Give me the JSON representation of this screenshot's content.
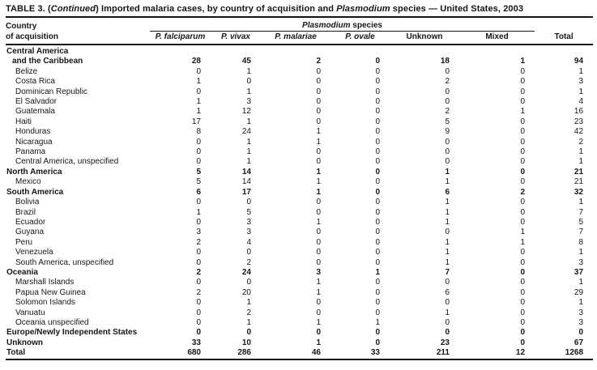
{
  "title": {
    "segments": [
      {
        "text": "TABLE 3. (",
        "italic": false
      },
      {
        "text": "Continued",
        "italic": true
      },
      {
        "text": ") Imported malaria cases, by country of acquisition and ",
        "italic": false
      },
      {
        "text": "Plasmodium",
        "italic": true
      },
      {
        "text": " species — United States, 2003",
        "italic": false
      }
    ]
  },
  "header": {
    "country_line1": "Country",
    "country_line2": "of acquisition",
    "species_group_italic": "Plasmodium",
    "species_group_rest": " species",
    "columns": [
      "P. falciparum",
      "P. vivax",
      "P. malariae",
      "P. ovale",
      "Unknown",
      "Mixed",
      "Total"
    ]
  },
  "rows": [
    {
      "label": "Central America",
      "indent": 0,
      "bold": true,
      "values": null
    },
    {
      "label": "and the Caribbean",
      "indent": 1,
      "bold": true,
      "values": [
        28,
        45,
        2,
        0,
        18,
        1,
        94
      ]
    },
    {
      "label": "Belize",
      "indent": 2,
      "bold": false,
      "values": [
        0,
        1,
        0,
        0,
        0,
        0,
        1
      ]
    },
    {
      "label": "Costa Rica",
      "indent": 2,
      "bold": false,
      "values": [
        1,
        0,
        0,
        0,
        2,
        0,
        3
      ]
    },
    {
      "label": "Dominican Republic",
      "indent": 2,
      "bold": false,
      "values": [
        0,
        1,
        0,
        0,
        0,
        0,
        1
      ]
    },
    {
      "label": "El Salvador",
      "indent": 2,
      "bold": false,
      "values": [
        1,
        3,
        0,
        0,
        0,
        0,
        4
      ]
    },
    {
      "label": "Guatemala",
      "indent": 2,
      "bold": false,
      "values": [
        1,
        12,
        0,
        0,
        2,
        1,
        16
      ]
    },
    {
      "label": "Haiti",
      "indent": 2,
      "bold": false,
      "values": [
        17,
        1,
        0,
        0,
        5,
        0,
        23
      ]
    },
    {
      "label": "Honduras",
      "indent": 2,
      "bold": false,
      "values": [
        8,
        24,
        1,
        0,
        9,
        0,
        42
      ]
    },
    {
      "label": "Nicaragua",
      "indent": 2,
      "bold": false,
      "values": [
        0,
        1,
        1,
        0,
        0,
        0,
        2
      ]
    },
    {
      "label": "Panama",
      "indent": 2,
      "bold": false,
      "values": [
        0,
        1,
        0,
        0,
        0,
        0,
        1
      ]
    },
    {
      "label": "Central America, unspecified",
      "indent": 2,
      "bold": false,
      "values": [
        0,
        1,
        0,
        0,
        0,
        0,
        1
      ]
    },
    {
      "label": "North America",
      "indent": 0,
      "bold": true,
      "values": [
        5,
        14,
        1,
        0,
        1,
        0,
        21
      ]
    },
    {
      "label": "Mexico",
      "indent": 2,
      "bold": false,
      "values": [
        5,
        14,
        1,
        0,
        1,
        0,
        21
      ]
    },
    {
      "label": "South America",
      "indent": 0,
      "bold": true,
      "values": [
        6,
        17,
        1,
        0,
        6,
        2,
        32
      ]
    },
    {
      "label": "Bolivia",
      "indent": 2,
      "bold": false,
      "values": [
        0,
        0,
        0,
        0,
        1,
        0,
        1
      ]
    },
    {
      "label": "Brazil",
      "indent": 2,
      "bold": false,
      "values": [
        1,
        5,
        0,
        0,
        1,
        0,
        7
      ]
    },
    {
      "label": "Ecuador",
      "indent": 2,
      "bold": false,
      "values": [
        0,
        3,
        1,
        0,
        1,
        0,
        5
      ]
    },
    {
      "label": "Guyana",
      "indent": 2,
      "bold": false,
      "values": [
        3,
        3,
        0,
        0,
        0,
        1,
        7
      ]
    },
    {
      "label": "Peru",
      "indent": 2,
      "bold": false,
      "values": [
        2,
        4,
        0,
        0,
        1,
        1,
        8
      ]
    },
    {
      "label": "Venezuela",
      "indent": 2,
      "bold": false,
      "values": [
        0,
        0,
        0,
        0,
        1,
        0,
        1
      ]
    },
    {
      "label": "South America, unspecified",
      "indent": 2,
      "bold": false,
      "values": [
        0,
        2,
        0,
        0,
        1,
        0,
        3
      ]
    },
    {
      "label": "Oceania",
      "indent": 0,
      "bold": true,
      "values": [
        2,
        24,
        3,
        1,
        7,
        0,
        37
      ]
    },
    {
      "label": "Marshall Islands",
      "indent": 2,
      "bold": false,
      "values": [
        0,
        0,
        1,
        0,
        0,
        0,
        1
      ]
    },
    {
      "label": "Papua New Guinea",
      "indent": 2,
      "bold": false,
      "values": [
        2,
        20,
        1,
        0,
        6,
        0,
        29
      ]
    },
    {
      "label": "Solomon Islands",
      "indent": 2,
      "bold": false,
      "values": [
        0,
        1,
        0,
        0,
        0,
        0,
        1
      ]
    },
    {
      "label": "Vanuatu",
      "indent": 2,
      "bold": false,
      "values": [
        0,
        2,
        0,
        0,
        1,
        0,
        3
      ]
    },
    {
      "label": "Oceania unspecified",
      "indent": 2,
      "bold": false,
      "values": [
        0,
        1,
        1,
        1,
        0,
        0,
        3
      ]
    },
    {
      "label": "Europe/Newly Independent States",
      "indent": 0,
      "bold": true,
      "values": [
        0,
        0,
        0,
        0,
        0,
        0,
        0
      ]
    },
    {
      "label": "Unknown",
      "indent": 0,
      "bold": true,
      "values": [
        33,
        10,
        1,
        0,
        23,
        0,
        67
      ]
    },
    {
      "label": "Total",
      "indent": 0,
      "bold": true,
      "values": [
        680,
        286,
        46,
        33,
        211,
        12,
        1268
      ]
    }
  ],
  "colors": {
    "text": "#161616",
    "background": "#ffffff",
    "rule": "#161616"
  }
}
